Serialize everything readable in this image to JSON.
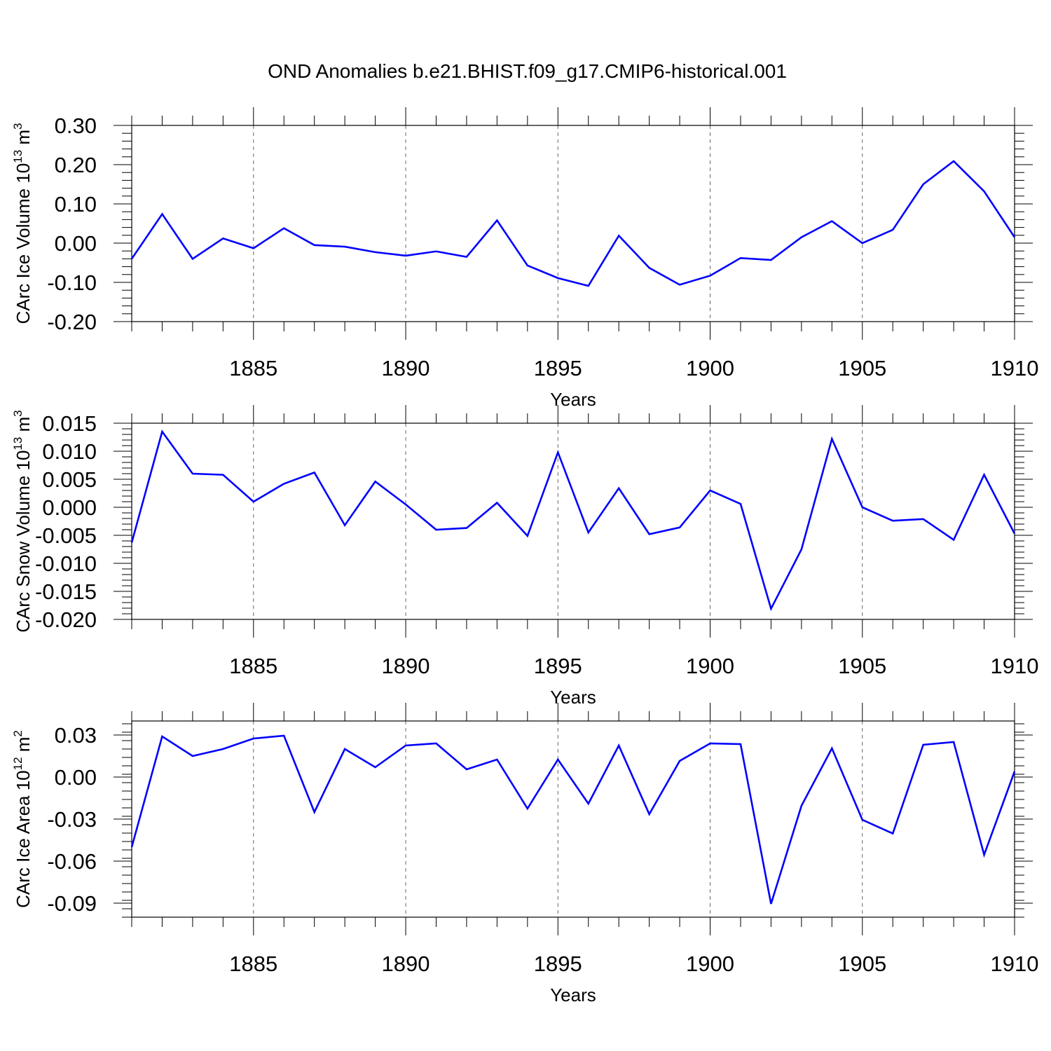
{
  "title": "OND Anomalies b.e21.BHIST.f09_g17.CMIP6-historical.001",
  "line_color": "#0000ff",
  "chart_data": [
    {
      "type": "line",
      "ylabel": "CArc Ice Volume 10",
      "ylabel_exp": "13",
      "ylabel_unit": "m",
      "ylabel_unit_exp": "3",
      "xlabel": "Years",
      "xlim": [
        1881,
        1910
      ],
      "ylim": [
        -0.2,
        0.3
      ],
      "yticks": [
        "0.30",
        "0.20",
        "0.10",
        "0.00",
        "-0.10",
        "-0.20"
      ],
      "ytick_values": [
        0.3,
        0.2,
        0.1,
        0.0,
        -0.1,
        -0.2
      ],
      "yminor_step": 0.02,
      "xticks": [
        "1885",
        "1890",
        "1895",
        "1900",
        "1905",
        "1910"
      ],
      "x": [
        1881,
        1882,
        1883,
        1884,
        1885,
        1886,
        1887,
        1888,
        1889,
        1890,
        1891,
        1892,
        1893,
        1894,
        1895,
        1896,
        1897,
        1898,
        1899,
        1900,
        1901,
        1902,
        1903,
        1904,
        1905,
        1906,
        1907,
        1908,
        1909,
        1910
      ],
      "values": [
        -0.04,
        0.074,
        -0.04,
        0.012,
        -0.013,
        0.038,
        -0.005,
        -0.009,
        -0.023,
        -0.032,
        -0.021,
        -0.035,
        0.058,
        -0.057,
        -0.089,
        -0.109,
        0.019,
        -0.063,
        -0.106,
        -0.083,
        -0.038,
        -0.043,
        0.015,
        0.056,
        0.0,
        0.034,
        0.15,
        0.209,
        0.132,
        0.015
      ]
    },
    {
      "type": "line",
      "ylabel": "CArc Snow Volume 10",
      "ylabel_exp": "13",
      "ylabel_unit": "m",
      "ylabel_unit_exp": "3",
      "xlabel": "Years",
      "xlim": [
        1881,
        1910
      ],
      "ylim": [
        -0.02,
        0.015
      ],
      "yticks": [
        "0.015",
        "0.010",
        "0.005",
        "0.000",
        "-0.005",
        "-0.010",
        "-0.015",
        "-0.020"
      ],
      "ytick_values": [
        0.015,
        0.01,
        0.005,
        0.0,
        -0.005,
        -0.01,
        -0.015,
        -0.02
      ],
      "yminor_step": 0.001,
      "xticks": [
        "1885",
        "1890",
        "1895",
        "1900",
        "1905",
        "1910"
      ],
      "x": [
        1881,
        1882,
        1883,
        1884,
        1885,
        1886,
        1887,
        1888,
        1889,
        1890,
        1891,
        1892,
        1893,
        1894,
        1895,
        1896,
        1897,
        1898,
        1899,
        1900,
        1901,
        1902,
        1903,
        1904,
        1905,
        1906,
        1907,
        1908,
        1909,
        1910
      ],
      "values": [
        -0.0063,
        0.0135,
        0.006,
        0.0058,
        0.001,
        0.0042,
        0.0062,
        -0.0032,
        0.0046,
        0.0005,
        -0.004,
        -0.0037,
        0.0008,
        -0.0051,
        0.0098,
        -0.0045,
        0.0034,
        -0.0048,
        -0.0036,
        0.003,
        0.0006,
        -0.0181,
        -0.0075,
        0.0122,
        0.0,
        -0.0024,
        -0.0021,
        -0.0058,
        0.0058,
        -0.0047
      ]
    },
    {
      "type": "line",
      "ylabel": "CArc Ice Area 10",
      "ylabel_exp": "12",
      "ylabel_unit": "m",
      "ylabel_unit_exp": "2",
      "xlabel": "Years",
      "xlim": [
        1881,
        1910
      ],
      "ylim": [
        -0.1,
        0.04
      ],
      "yticks": [
        "0.03",
        "0.00",
        "-0.03",
        "-0.06",
        "-0.09"
      ],
      "ytick_values": [
        0.03,
        0.0,
        -0.03,
        -0.06,
        -0.09
      ],
      "yminor_step": 0.006,
      "xticks": [
        "1885",
        "1890",
        "1895",
        "1900",
        "1905",
        "1910"
      ],
      "x": [
        1881,
        1882,
        1883,
        1884,
        1885,
        1886,
        1887,
        1888,
        1889,
        1890,
        1891,
        1892,
        1893,
        1894,
        1895,
        1896,
        1897,
        1898,
        1899,
        1900,
        1901,
        1902,
        1903,
        1904,
        1905,
        1906,
        1907,
        1908,
        1909,
        1910
      ],
      "values": [
        -0.05,
        0.029,
        0.015,
        0.02,
        0.0275,
        0.0295,
        -0.025,
        0.02,
        0.007,
        0.0225,
        0.024,
        0.0055,
        0.0125,
        -0.0225,
        0.0125,
        -0.019,
        0.0225,
        -0.0265,
        0.0115,
        0.024,
        0.0235,
        -0.0905,
        -0.0205,
        0.0205,
        -0.0305,
        -0.0403,
        0.023,
        0.025,
        -0.0555,
        0.004
      ]
    }
  ]
}
